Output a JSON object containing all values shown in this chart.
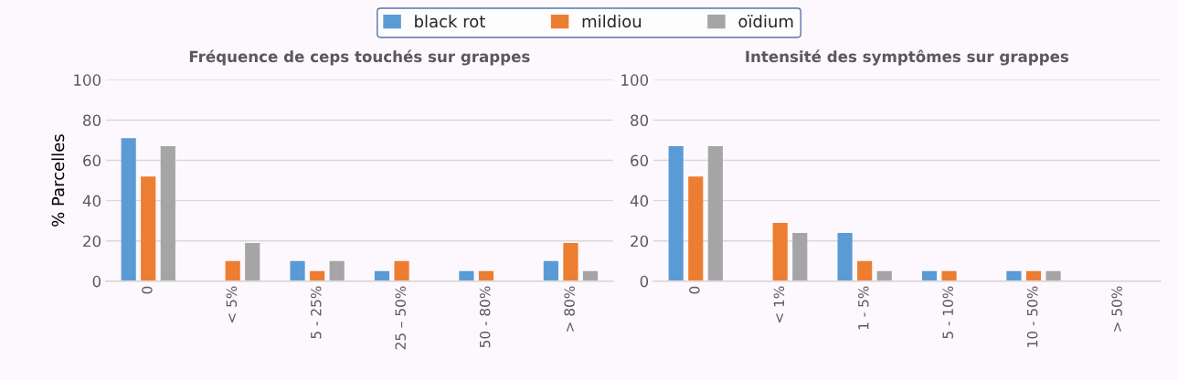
{
  "chart_data": [
    {
      "type": "bar",
      "title": "Fréquence de ceps touchés sur grappes",
      "ylabel": "% Parcelles",
      "categories": [
        "0",
        "< 5%",
        "5 - 25%",
        "25 – 50%",
        "50 - 80%",
        "> 80%"
      ],
      "series": [
        {
          "name": "black rot",
          "color": "#5b9bd5",
          "values": [
            71,
            null,
            10,
            5,
            5,
            10
          ]
        },
        {
          "name": "mildiou",
          "color": "#ed7d31",
          "values": [
            52,
            10,
            5,
            10,
            5,
            19
          ]
        },
        {
          "name": "oïdium",
          "color": "#a5a5a5",
          "values": [
            67,
            19,
            10,
            null,
            null,
            5
          ]
        }
      ],
      "ylim": [
        0,
        100
      ],
      "yticks": [
        0,
        20,
        40,
        60,
        80,
        100
      ],
      "grid": "y",
      "legend": "top"
    },
    {
      "type": "bar",
      "title": "Intensité des symptômes sur grappes",
      "categories": [
        "0",
        "< 1%",
        "1 - 5%",
        "5 - 10%",
        "10 - 50%",
        "> 50%"
      ],
      "series": [
        {
          "color": "#5b9bd5",
          "values": [
            67,
            null,
            24,
            5,
            5,
            null
          ]
        },
        {
          "color": "#ed7d31",
          "values": [
            52,
            29,
            10,
            5,
            5,
            null
          ]
        },
        {
          "color": "#a5a5a5",
          "values": [
            67,
            24,
            5,
            null,
            5,
            null
          ]
        }
      ],
      "ylim": [
        0,
        100
      ],
      "yticks": [
        0,
        20,
        40,
        60,
        80,
        100
      ],
      "grid": "y"
    }
  ]
}
